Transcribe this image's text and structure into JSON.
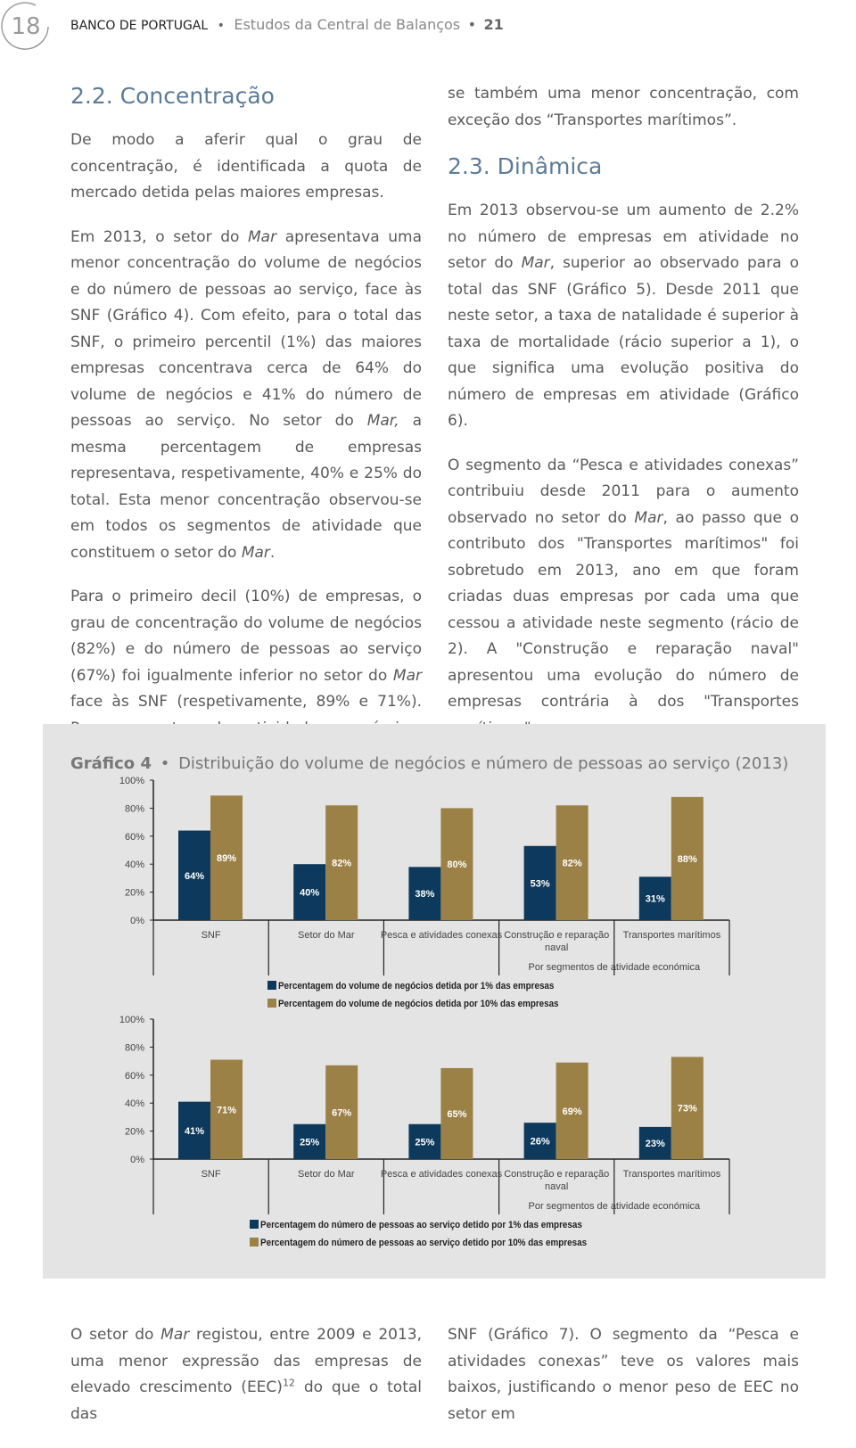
{
  "header": {
    "page_number": "18",
    "publisher": "BANCO DE PORTUGAL",
    "separator": "•",
    "series": "Estudos da Central de Balanços",
    "issue": "21"
  },
  "left_column": [
    {
      "type": "heading",
      "text": "2.2. Concentração"
    },
    {
      "type": "paragraph",
      "runs": [
        {
          "text": "De modo a aferir qual o grau de concentração, é identificada a quota de mercado detida pelas maiores empresas."
        }
      ]
    },
    {
      "type": "paragraph",
      "runs": [
        {
          "text": "Em 2013, o setor do "
        },
        {
          "text": "Mar",
          "style": "italic"
        },
        {
          "text": " apresentava uma menor concentração do volume de negócios e do número de pessoas ao serviço, face às SNF (Gráfico 4). Com efeito, para o total das SNF, o primeiro percentil (1%) das maiores empresas concentrava cerca de 64% do volume de negócios e 41% do número de pessoas ao serviço. No setor do "
        },
        {
          "text": "Mar,",
          "style": "italic"
        },
        {
          "text": " a mesma percentagem de empresas representava, respetivamente, 40% e 25% do total. Esta menor concentração observou-se em todos os segmentos de atividade que constituem o setor do "
        },
        {
          "text": "Mar",
          "style": "italic"
        },
        {
          "text": "."
        }
      ]
    },
    {
      "type": "paragraph",
      "runs": [
        {
          "text": "Para o primeiro decil (10%) de empresas, o grau de concentração do volume de negócios (82%) e do número de pessoas ao serviço (67%) foi igualmente inferior no setor do "
        },
        {
          "text": "Mar",
          "style": "italic"
        },
        {
          "text": " face às SNF (respetivamente, 89% e 71%). Por segmentos de atividade económica, verificou-"
        }
      ]
    }
  ],
  "right_column": [
    {
      "type": "paragraph",
      "runs": [
        {
          "text": "se também uma menor concentração, com exceção dos “Transportes marítimos”."
        }
      ]
    },
    {
      "type": "heading",
      "text": "2.3. Dinâmica"
    },
    {
      "type": "paragraph",
      "runs": [
        {
          "text": "Em 2013 observou-se um aumento de 2.2% no número de empresas em atividade no setor do "
        },
        {
          "text": "Mar",
          "style": "italic"
        },
        {
          "text": ", superior ao observado para o total das SNF (Gráfico 5). Desde 2011 que neste setor, a taxa de natalidade é superior à taxa de mortalidade (rácio superior a 1), o que significa uma evolução positiva do número de empresas em atividade (Gráfico 6)."
        }
      ]
    },
    {
      "type": "paragraph",
      "runs": [
        {
          "text": "O segmento da “Pesca e atividades conexas” contribuiu desde 2011 para o aumento observado no setor do "
        },
        {
          "text": "Mar",
          "style": "italic"
        },
        {
          "text": ", ao passo que o contributo dos \"Transportes marítimos\" foi sobretudo em 2013, ano em que foram criadas duas empresas por cada uma que cessou a atividade neste segmento (rácio de 2). A \"Construção e reparação naval\" apresentou uma evolução do número de empresas contrária à dos \"Transportes marítimos\"."
        }
      ]
    }
  ],
  "figure": {
    "label": "Gráfico 4",
    "separator": "•",
    "title": "Distribuição do volume de negócios e número de pessoas ao serviço (2013)"
  },
  "chart_data": [
    {
      "type": "bar",
      "categories": [
        "SNF",
        "Setor do Mar",
        "Pesca e atividades conexas",
        "Construção e reparação naval",
        "Transportes marítimos"
      ],
      "xlabel": "Por segmentos de atividade económica",
      "ylim": [
        0,
        100
      ],
      "yticks": [
        {
          "value": 0,
          "label": "0%"
        },
        {
          "value": 20,
          "label": "20%"
        },
        {
          "value": 40,
          "label": "40%"
        },
        {
          "value": 60,
          "label": "60%"
        },
        {
          "value": 80,
          "label": "80%"
        },
        {
          "value": 100,
          "label": "100%"
        }
      ],
      "series": [
        {
          "name": "Percentagem do volume de negócios detida por 1% das empresas",
          "color": "#0d3a5c",
          "values": [
            64,
            40,
            38,
            53,
            31
          ],
          "value_labels": [
            "64%",
            "40%",
            "38%",
            "53%",
            "31%"
          ]
        },
        {
          "name": "Percentagem do volume de negócios detida por 10% das empresas",
          "color": "#9c8146",
          "values": [
            89,
            82,
            80,
            82,
            88
          ],
          "value_labels": [
            "89%",
            "82%",
            "80%",
            "82%",
            "88%"
          ]
        }
      ]
    },
    {
      "type": "bar",
      "categories": [
        "SNF",
        "Setor do Mar",
        "Pesca e atividades conexas",
        "Construção e reparação naval",
        "Transportes marítimos"
      ],
      "xlabel": "Por segmentos de atividade económica",
      "ylim": [
        0,
        100
      ],
      "yticks": [
        {
          "value": 0,
          "label": "0%"
        },
        {
          "value": 20,
          "label": "20%"
        },
        {
          "value": 40,
          "label": "40%"
        },
        {
          "value": 60,
          "label": "60%"
        },
        {
          "value": 80,
          "label": "80%"
        },
        {
          "value": 100,
          "label": "100%"
        }
      ],
      "series": [
        {
          "name": "Percentagem do número de pessoas ao serviço detido por 1% das empresas",
          "color": "#0d3a5c",
          "values": [
            41,
            25,
            25,
            26,
            23
          ],
          "value_labels": [
            "41%",
            "25%",
            "25%",
            "26%",
            "23%"
          ]
        },
        {
          "name": "Percentagem do número de pessoas ao serviço detido por 10% das empresas",
          "color": "#9c8146",
          "values": [
            71,
            67,
            65,
            69,
            73
          ],
          "value_labels": [
            "71%",
            "67%",
            "65%",
            "69%",
            "73%"
          ]
        }
      ]
    }
  ],
  "bottom_left": [
    {
      "type": "paragraph",
      "runs": [
        {
          "text": "O setor do "
        },
        {
          "text": "Mar",
          "style": "italic"
        },
        {
          "text": " registou, entre 2009 e 2013, uma menor expressão das empresas de elevado crescimento (EEC)"
        },
        {
          "text": "12",
          "style": "sup"
        },
        {
          "text": " do que o total das"
        }
      ]
    }
  ],
  "bottom_right": [
    {
      "type": "paragraph",
      "runs": [
        {
          "text": "SNF (Gráfico 7). O segmento da “Pesca e atividades conexas” teve os valores mais baixos, justificando o menor peso de EEC no setor em"
        }
      ]
    }
  ]
}
